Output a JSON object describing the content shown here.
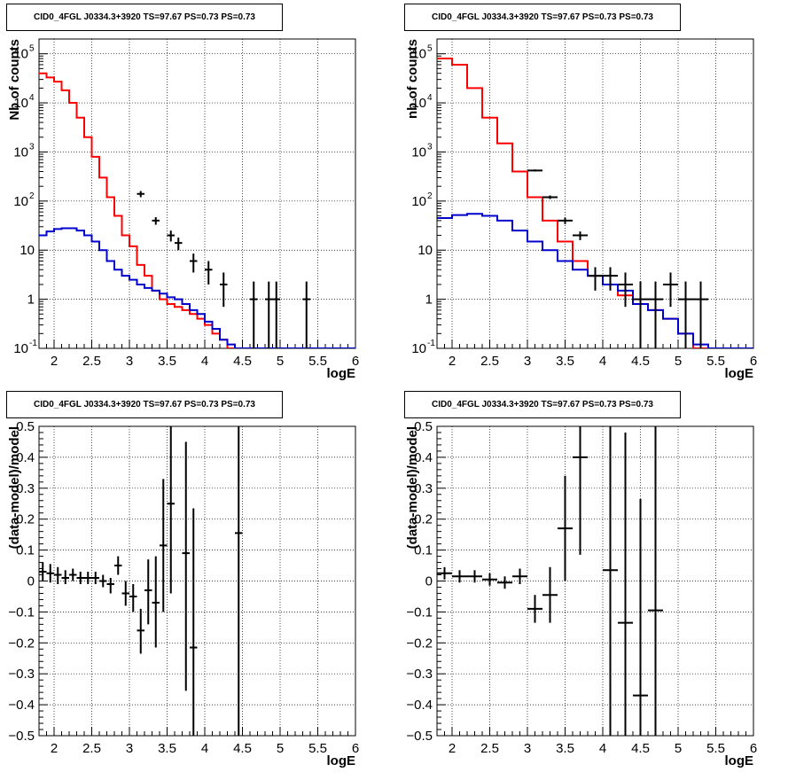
{
  "panels": [
    {
      "id": "top-left",
      "title": "CID0_4FGL J0334.3+3920 TS=97.67 PS=0.73 PS=0.73",
      "xlabel": "logE",
      "ylabel": "Nb of counts",
      "logy": true
    },
    {
      "id": "top-right",
      "title": "CID0_4FGL J0334.3+3920 TS=97.67 PS=0.73 PS=0.73",
      "xlabel": "logE",
      "ylabel": "nb of counts",
      "logy": true
    },
    {
      "id": "bottom-left",
      "title": "CID0_4FGL J0334.3+3920 TS=97.67 PS=0.73 PS=0.73",
      "xlabel": "logE",
      "ylabel": "(data-model)/model",
      "logy": false
    },
    {
      "id": "bottom-right",
      "title": "CID0_4FGL J0334.3+3920 TS=97.67 PS=0.73 PS=0.73",
      "xlabel": "logE",
      "ylabel": "(data-model)/model",
      "logy": false
    }
  ],
  "chart_data": [
    {
      "type": "line",
      "title": "CID0_4FGL J0334.3+3920 TS=97.67 PS=0.73 PS=0.73",
      "xlabel": "logE",
      "ylabel": "Nb of counts",
      "xlim": [
        1.8,
        6.0
      ],
      "ylim": [
        0.1,
        200000
      ],
      "yscale": "log",
      "grid": true,
      "xticks": [
        "2",
        "2.5",
        "3",
        "3.5",
        "4",
        "4.5",
        "5",
        "5.5",
        "6"
      ],
      "yticks": [
        "10^-1",
        "1",
        "10",
        "10^2",
        "10^3",
        "10^4",
        "10^5"
      ],
      "bin_width": 0.1,
      "series": [
        {
          "color": "#ff0000",
          "style": "histogram",
          "x_start": 1.8,
          "values": [
            40000,
            33000,
            27000,
            18000,
            10000,
            5000,
            2000,
            800,
            300,
            120,
            50,
            20,
            12,
            5,
            3,
            1.5,
            1.0,
            0.8,
            0.7,
            0.6,
            0.5,
            0.4,
            0.3,
            0.2,
            0.15,
            0.1,
            0.1,
            0.1,
            0.1,
            0.1,
            0.1,
            0.1,
            0.1,
            0.1,
            0.1,
            0.1,
            0.1,
            0.1,
            0.1,
            0.1,
            0.1,
            0.1
          ]
        },
        {
          "color": "#0000cc",
          "style": "histogram",
          "x_start": 1.8,
          "values": [
            20,
            24,
            27,
            28,
            28,
            25,
            20,
            15,
            10,
            6,
            4,
            3,
            2.5,
            2,
            1.7,
            1.5,
            1.3,
            1.1,
            1.0,
            0.8,
            0.6,
            0.5,
            0.35,
            0.25,
            0.15,
            0.12,
            0.1,
            0.1,
            0.1,
            0.1,
            0.1,
            0.1,
            0.1,
            0.1,
            0.1,
            0.1,
            0.1,
            0.1,
            0.1,
            0.1,
            0.1,
            0.1
          ]
        },
        {
          "color": "#000000",
          "style": "errorbars",
          "points": [
            {
              "x": 3.15,
              "y": 140,
              "lo": 120,
              "hi": 160
            },
            {
              "x": 3.35,
              "y": 40,
              "lo": 33,
              "hi": 47
            },
            {
              "x": 3.55,
              "y": 20,
              "lo": 15,
              "hi": 25
            },
            {
              "x": 3.65,
              "y": 14,
              "lo": 10,
              "hi": 18
            },
            {
              "x": 3.85,
              "y": 6,
              "lo": 3.5,
              "hi": 8.5
            },
            {
              "x": 4.05,
              "y": 4,
              "lo": 2,
              "hi": 6
            },
            {
              "x": 4.25,
              "y": 2,
              "lo": 0.7,
              "hi": 3.5
            },
            {
              "x": 4.65,
              "y": 1,
              "lo": 0.1,
              "hi": 2.3
            },
            {
              "x": 4.85,
              "y": 1,
              "lo": 0.1,
              "hi": 2.3
            },
            {
              "x": 4.95,
              "y": 1,
              "lo": 0.1,
              "hi": 2.3
            },
            {
              "x": 5.35,
              "y": 1,
              "lo": 0.1,
              "hi": 2.3
            }
          ]
        }
      ]
    },
    {
      "type": "line",
      "title": "CID0_4FGL J0334.3+3920 TS=97.67 PS=0.73 PS=0.73",
      "xlabel": "logE",
      "ylabel": "nb of counts",
      "xlim": [
        1.8,
        6.0
      ],
      "ylim": [
        0.1,
        200000
      ],
      "yscale": "log",
      "grid": true,
      "xticks": [
        "2",
        "2.5",
        "3",
        "3.5",
        "4",
        "4.5",
        "5",
        "5.5",
        "6"
      ],
      "yticks": [
        "10^-1",
        "1",
        "10",
        "10^2",
        "10^3",
        "10^4",
        "10^5"
      ],
      "bin_width": 0.2,
      "series": [
        {
          "color": "#ff0000",
          "style": "histogram",
          "x_start": 1.8,
          "values": [
            80000,
            60000,
            20000,
            5000,
            1500,
            400,
            120,
            40,
            15,
            6,
            3,
            2,
            1.2,
            0.8,
            0.6,
            0.4,
            0.2,
            0.1,
            0.1,
            0.1,
            0.1
          ]
        },
        {
          "color": "#0000cc",
          "style": "histogram",
          "x_start": 1.8,
          "values": [
            45,
            52,
            55,
            50,
            40,
            25,
            15,
            10,
            6,
            4,
            3,
            2,
            1.5,
            0.8,
            0.6,
            0.4,
            0.2,
            0.12,
            0.1,
            0.1,
            0.1
          ]
        },
        {
          "color": "#000000",
          "style": "errorbars",
          "points": [
            {
              "x": 3.1,
              "y": 420,
              "lo": 400,
              "hi": 440
            },
            {
              "x": 3.3,
              "y": 120,
              "lo": 110,
              "hi": 130
            },
            {
              "x": 3.5,
              "y": 40,
              "lo": 34,
              "hi": 46
            },
            {
              "x": 3.7,
              "y": 20,
              "lo": 16,
              "hi": 24
            },
            {
              "x": 3.9,
              "y": 3,
              "lo": 1.5,
              "hi": 4.5
            },
            {
              "x": 4.1,
              "y": 3,
              "lo": 1.5,
              "hi": 4.5
            },
            {
              "x": 4.3,
              "y": 2,
              "lo": 0.7,
              "hi": 3.5
            },
            {
              "x": 4.5,
              "y": 1,
              "lo": 0.1,
              "hi": 2.3
            },
            {
              "x": 4.7,
              "y": 1,
              "lo": 0.1,
              "hi": 2.3
            },
            {
              "x": 4.9,
              "y": 2,
              "lo": 0.7,
              "hi": 3.5
            },
            {
              "x": 5.1,
              "y": 1,
              "lo": 0.1,
              "hi": 2.3
            },
            {
              "x": 5.3,
              "y": 1,
              "lo": 0.1,
              "hi": 2.3
            }
          ]
        }
      ]
    },
    {
      "type": "scatter",
      "title": "CID0_4FGL J0334.3+3920 TS=97.67 PS=0.73 PS=0.73",
      "xlabel": "logE",
      "ylabel": "(data-model)/model",
      "xlim": [
        1.8,
        6.0
      ],
      "ylim": [
        -0.5,
        0.5
      ],
      "yscale": "linear",
      "grid": true,
      "xticks": [
        "2",
        "2.5",
        "3",
        "3.5",
        "4",
        "4.5",
        "5",
        "5.5",
        "6"
      ],
      "yticks": [
        "−0.5",
        "−0.4",
        "−0.3",
        "−0.2",
        "−0.1",
        "0",
        "0.1",
        "0.2",
        "0.3",
        "0.4",
        "0.5"
      ],
      "points": [
        {
          "x": 1.85,
          "y": 0.03,
          "lo": 0.0,
          "hi": 0.06,
          "xerr": 0.05
        },
        {
          "x": 1.95,
          "y": 0.025,
          "lo": -0.005,
          "hi": 0.055,
          "xerr": 0.05
        },
        {
          "x": 2.05,
          "y": 0.02,
          "lo": -0.01,
          "hi": 0.045,
          "xerr": 0.05
        },
        {
          "x": 2.15,
          "y": 0.01,
          "lo": -0.01,
          "hi": 0.035,
          "xerr": 0.05
        },
        {
          "x": 2.25,
          "y": 0.02,
          "lo": 0.0,
          "hi": 0.04,
          "xerr": 0.05
        },
        {
          "x": 2.35,
          "y": 0.01,
          "lo": -0.01,
          "hi": 0.03,
          "xerr": 0.05
        },
        {
          "x": 2.45,
          "y": 0.01,
          "lo": -0.01,
          "hi": 0.03,
          "xerr": 0.05
        },
        {
          "x": 2.55,
          "y": 0.01,
          "lo": -0.01,
          "hi": 0.03,
          "xerr": 0.05
        },
        {
          "x": 2.65,
          "y": 0.0,
          "lo": -0.02,
          "hi": 0.02,
          "xerr": 0.05
        },
        {
          "x": 2.75,
          "y": -0.01,
          "lo": -0.04,
          "hi": 0.01,
          "xerr": 0.05
        },
        {
          "x": 2.85,
          "y": 0.05,
          "lo": 0.02,
          "hi": 0.08,
          "xerr": 0.05
        },
        {
          "x": 2.95,
          "y": -0.04,
          "lo": -0.08,
          "hi": 0.0,
          "xerr": 0.05
        },
        {
          "x": 3.05,
          "y": -0.05,
          "lo": -0.1,
          "hi": -0.01,
          "xerr": 0.05
        },
        {
          "x": 3.15,
          "y": -0.16,
          "lo": -0.235,
          "hi": -0.09,
          "xerr": 0.05
        },
        {
          "x": 3.25,
          "y": -0.03,
          "lo": -0.14,
          "hi": 0.07,
          "xerr": 0.05
        },
        {
          "x": 3.35,
          "y": -0.07,
          "lo": -0.215,
          "hi": 0.08,
          "xerr": 0.05
        },
        {
          "x": 3.45,
          "y": 0.115,
          "lo": -0.1,
          "hi": 0.33,
          "xerr": 0.05
        },
        {
          "x": 3.55,
          "y": 0.25,
          "lo": -0.04,
          "hi": 0.5,
          "xerr": 0.05
        },
        {
          "x": 3.75,
          "y": 0.09,
          "lo": -0.355,
          "hi": 0.45,
          "xerr": 0.05
        },
        {
          "x": 3.85,
          "y": -0.215,
          "lo": -0.5,
          "hi": 0.235,
          "xerr": 0.05
        },
        {
          "x": 4.45,
          "y": 0.155,
          "lo": -0.5,
          "hi": 0.5,
          "xerr": 0.05
        }
      ]
    },
    {
      "type": "scatter",
      "title": "CID0_4FGL J0334.3+3920 TS=97.67 PS=0.73 PS=0.73",
      "xlabel": "logE",
      "ylabel": "(data-model)/model",
      "xlim": [
        1.8,
        6.0
      ],
      "ylim": [
        -0.5,
        0.5
      ],
      "yscale": "linear",
      "grid": true,
      "xticks": [
        "2",
        "2.5",
        "3",
        "3.5",
        "4",
        "4.5",
        "5",
        "5.5",
        "6"
      ],
      "yticks": [
        "−0.5",
        "−0.4",
        "−0.3",
        "−0.2",
        "−0.1",
        "0",
        "0.1",
        "0.2",
        "0.3",
        "0.4",
        "0.5"
      ],
      "points": [
        {
          "x": 1.9,
          "y": 0.025,
          "lo": 0.005,
          "hi": 0.045,
          "xerr": 0.1
        },
        {
          "x": 2.1,
          "y": 0.015,
          "lo": -0.005,
          "hi": 0.035,
          "xerr": 0.1
        },
        {
          "x": 2.3,
          "y": 0.015,
          "lo": -0.005,
          "hi": 0.035,
          "xerr": 0.1
        },
        {
          "x": 2.5,
          "y": 0.005,
          "lo": -0.015,
          "hi": 0.025,
          "xerr": 0.1
        },
        {
          "x": 2.7,
          "y": -0.005,
          "lo": -0.025,
          "hi": 0.015,
          "xerr": 0.1
        },
        {
          "x": 2.9,
          "y": 0.015,
          "lo": -0.01,
          "hi": 0.04,
          "xerr": 0.1
        },
        {
          "x": 3.1,
          "y": -0.09,
          "lo": -0.135,
          "hi": -0.045,
          "xerr": 0.1
        },
        {
          "x": 3.3,
          "y": -0.045,
          "lo": -0.135,
          "hi": 0.045,
          "xerr": 0.1
        },
        {
          "x": 3.5,
          "y": 0.17,
          "lo": 0.0,
          "hi": 0.34,
          "xerr": 0.1
        },
        {
          "x": 3.7,
          "y": 0.4,
          "lo": 0.085,
          "hi": 0.5,
          "xerr": 0.1
        },
        {
          "x": 4.1,
          "y": 0.035,
          "lo": -0.5,
          "hi": 0.5,
          "xerr": 0.1
        },
        {
          "x": 4.3,
          "y": -0.135,
          "lo": -0.5,
          "hi": 0.48,
          "xerr": 0.1
        },
        {
          "x": 4.5,
          "y": -0.37,
          "lo": -0.5,
          "hi": 0.265,
          "xerr": 0.1
        },
        {
          "x": 4.7,
          "y": -0.095,
          "lo": -0.5,
          "hi": 0.5,
          "xerr": 0.1
        }
      ]
    }
  ]
}
